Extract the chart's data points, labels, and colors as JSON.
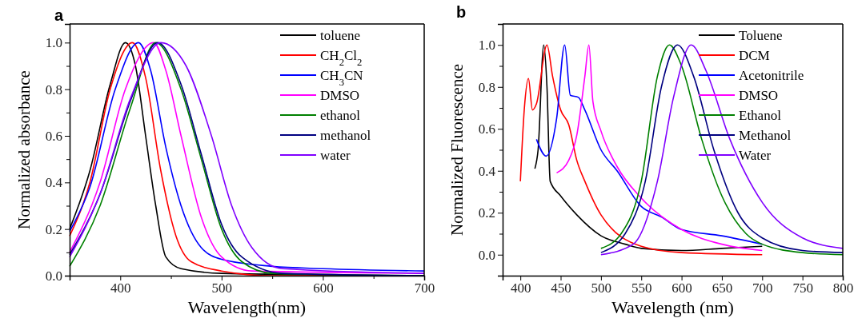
{
  "chart_data": [
    {
      "type": "line",
      "title": "a",
      "xlabel": "Wavelength(nm)",
      "ylabel": "Normalized absorbance",
      "xlim": [
        350,
        700
      ],
      "ylim": [
        0,
        1.08
      ],
      "xticks": [
        400,
        {
          "value": 450,
          "label": null
        },
        500,
        {
          "value": 550,
          "label": null
        },
        600,
        {
          "value": 650,
          "label": null
        },
        700
      ],
      "yticks": [
        {
          "value": 0,
          "label": "0.0"
        },
        {
          "value": 0.1,
          "label": null
        },
        {
          "value": 0.2,
          "label": "0.2"
        },
        {
          "value": 0.3,
          "label": null
        },
        {
          "value": 0.4,
          "label": "0.4"
        },
        {
          "value": 0.5,
          "label": null
        },
        {
          "value": 0.6,
          "label": "0.6"
        },
        {
          "value": 0.7,
          "label": null
        },
        {
          "value": 0.8,
          "label": "0.8"
        },
        {
          "value": 0.9,
          "label": null
        },
        {
          "value": 1.0,
          "label": "1.0"
        }
      ],
      "legend": "top right",
      "grid": false,
      "series": [
        {
          "name": "toluene",
          "color": "#000000",
          "x": [
            350,
            370,
            390,
            405,
            415,
            425,
            435,
            445,
            460,
            500,
            700
          ],
          "values": [
            0.2,
            0.45,
            0.82,
            1.0,
            0.9,
            0.6,
            0.3,
            0.08,
            0.03,
            0.01,
            0.0
          ]
        },
        {
          "name": "CH$_{2}$Cl$_{2}$",
          "color": "#ff0000",
          "x": [
            350,
            370,
            390,
            412,
            425,
            440,
            455,
            470,
            500,
            550,
            700
          ],
          "values": [
            0.17,
            0.4,
            0.8,
            1.0,
            0.85,
            0.45,
            0.17,
            0.06,
            0.02,
            0.0,
            0.0
          ]
        },
        {
          "name": "CH$_{3}$CN",
          "color": "#0000ff",
          "x": [
            350,
            370,
            395,
            418,
            430,
            445,
            460,
            480,
            500,
            550,
            600,
            700
          ],
          "values": [
            0.19,
            0.38,
            0.8,
            1.0,
            0.88,
            0.55,
            0.3,
            0.12,
            0.07,
            0.04,
            0.03,
            0.02
          ]
        },
        {
          "name": "DMSO",
          "color": "#ff00ff",
          "x": [
            350,
            380,
            405,
            433,
            445,
            460,
            480,
            500,
            530,
            700
          ],
          "values": [
            0.1,
            0.4,
            0.8,
            1.0,
            0.88,
            0.6,
            0.25,
            0.08,
            0.02,
            0.01
          ]
        },
        {
          "name": "ethanol",
          "color": "#008000",
          "x": [
            350,
            380,
            410,
            435,
            460,
            480,
            500,
            520,
            550,
            700
          ],
          "values": [
            0.04,
            0.3,
            0.72,
            1.0,
            0.8,
            0.5,
            0.2,
            0.06,
            0.01,
            0.0
          ]
        },
        {
          "name": "methanol",
          "color": "#000080",
          "x": [
            350,
            380,
            410,
            437,
            460,
            480,
            500,
            520,
            560,
            700
          ],
          "values": [
            0.09,
            0.35,
            0.75,
            1.0,
            0.82,
            0.52,
            0.22,
            0.08,
            0.01,
            0.0
          ]
        },
        {
          "name": "water",
          "color": "#8000ff",
          "x": [
            350,
            380,
            410,
            440,
            465,
            490,
            510,
            530,
            560,
            700
          ],
          "values": [
            0.08,
            0.35,
            0.76,
            1.0,
            0.9,
            0.6,
            0.3,
            0.12,
            0.03,
            0.01
          ]
        }
      ]
    },
    {
      "type": "line",
      "title": "b",
      "xlabel": "Wavelength (nm)",
      "ylabel": "Normalized Fluorescence",
      "xlim": [
        378,
        800
      ],
      "ylim": [
        -0.1,
        1.1
      ],
      "xticks": [
        400,
        450,
        500,
        550,
        600,
        650,
        700,
        750,
        800
      ],
      "yticks": [
        {
          "value": 0,
          "label": "0.0"
        },
        {
          "value": 0.1,
          "label": null
        },
        {
          "value": 0.2,
          "label": "0.2"
        },
        {
          "value": 0.3,
          "label": null
        },
        {
          "value": 0.4,
          "label": "0.4"
        },
        {
          "value": 0.5,
          "label": null
        },
        {
          "value": 0.6,
          "label": "0.6"
        },
        {
          "value": 0.7,
          "label": null
        },
        {
          "value": 0.8,
          "label": "0.8"
        },
        {
          "value": 0.9,
          "label": null
        },
        {
          "value": 1.0,
          "label": "1.0"
        }
      ],
      "legend": "top right",
      "grid": false,
      "series": [
        {
          "name": "Toluene",
          "color": "#000000",
          "x": [
            418,
            422,
            429,
            433,
            437,
            450,
            470,
            500,
            530,
            550,
            600,
            650,
            700
          ],
          "values": [
            0.41,
            0.5,
            1.0,
            0.8,
            0.35,
            0.28,
            0.19,
            0.09,
            0.05,
            0.03,
            0.02,
            0.03,
            0.04
          ]
        },
        {
          "name": "DCM",
          "color": "#ff0000",
          "x": [
            400,
            405,
            410,
            415,
            420,
            433,
            440,
            450,
            460,
            470,
            480,
            500,
            550,
            600,
            700
          ],
          "values": [
            0.35,
            0.7,
            0.84,
            0.69,
            0.72,
            1.0,
            0.85,
            0.69,
            0.62,
            0.45,
            0.35,
            0.19,
            0.04,
            0.01,
            0.0
          ]
        },
        {
          "name": "Acetonitrile",
          "color": "#0000ff",
          "x": [
            420,
            432,
            445,
            455,
            462,
            472,
            480,
            500,
            520,
            550,
            575,
            600,
            650,
            700
          ],
          "values": [
            0.55,
            0.47,
            0.65,
            1.0,
            0.76,
            0.75,
            0.69,
            0.5,
            0.4,
            0.23,
            0.18,
            0.12,
            0.09,
            0.05
          ]
        },
        {
          "name": "DMSO",
          "color": "#ff00ff",
          "x": [
            445,
            460,
            470,
            480,
            485,
            490,
            500,
            520,
            550,
            600,
            650,
            700
          ],
          "values": [
            0.39,
            0.45,
            0.57,
            0.85,
            1.0,
            0.73,
            0.59,
            0.42,
            0.27,
            0.12,
            0.05,
            0.02
          ]
        },
        {
          "name": "Ethanol",
          "color": "#008000",
          "x": [
            500,
            525,
            550,
            570,
            585,
            600,
            625,
            650,
            680,
            700,
            750,
            800
          ],
          "values": [
            0.03,
            0.1,
            0.35,
            0.85,
            1.0,
            0.9,
            0.55,
            0.28,
            0.1,
            0.05,
            0.01,
            0.0
          ]
        },
        {
          "name": "Methanol",
          "color": "#000080",
          "x": [
            500,
            530,
            555,
            575,
            595,
            615,
            640,
            670,
            700,
            750,
            800
          ],
          "values": [
            0.01,
            0.1,
            0.35,
            0.8,
            1.0,
            0.85,
            0.5,
            0.2,
            0.08,
            0.02,
            0.01
          ]
        },
        {
          "name": "Water",
          "color": "#8000ff",
          "x": [
            500,
            540,
            570,
            590,
            612,
            630,
            660,
            700,
            750,
            800
          ],
          "values": [
            0.0,
            0.05,
            0.35,
            0.75,
            1.0,
            0.88,
            0.55,
            0.25,
            0.08,
            0.03
          ]
        }
      ]
    }
  ]
}
